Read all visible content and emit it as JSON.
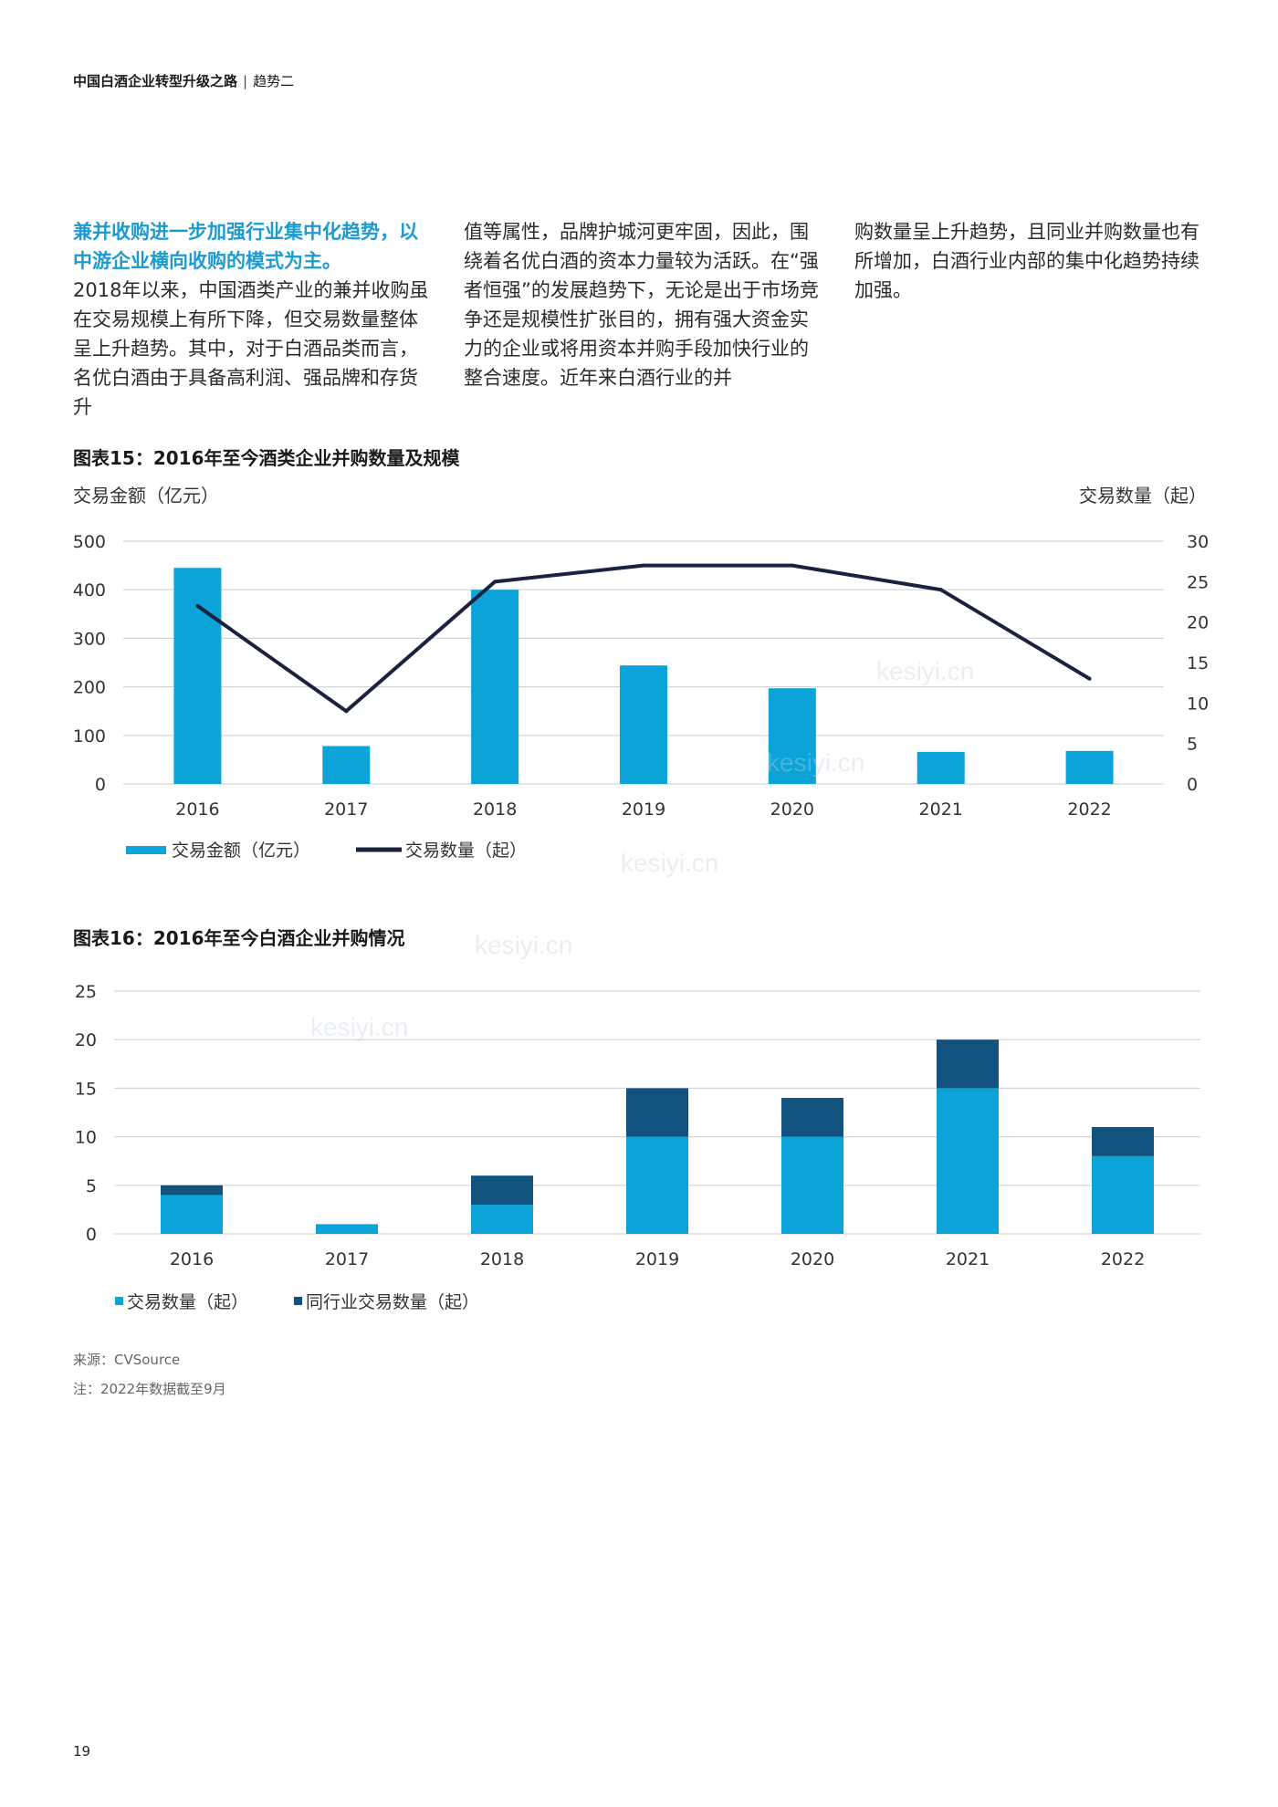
{
  "header": {
    "title": "中国白酒企业转型升级之路",
    "section": "趋势二"
  },
  "body_text": {
    "col1_lead": "兼并收购进一步加强行业集中化趋势，以中游企业横向收购的模式为主。",
    "col1_text": "2018年以来，中国酒类产业的兼并收购虽在交易规模上有所下降，但交易数量整体呈上升趋势。其中，对于白酒品类而言，名优白酒由于具备高利润、强品牌和存货升",
    "col2_text": "值等属性，品牌护城河更牢固，因此，围绕着名优白酒的资本力量较为活跃。在“强者恒强”的发展趋势下，无论是出于市场竞争还是规模性扩张目的，拥有强大资金实力的企业或将用资本并购手段加快行业的整合速度。近年来白酒行业的并",
    "col3_text": "购数量呈上升趋势，且同业并购数量也有所增加，白酒行业内部的集中化趋势持续加强。"
  },
  "chart_data": [
    {
      "type": "bar",
      "title": "图表15：2016年至今酒类企业并购数量及规模",
      "ylabel": "交易金额（亿元）",
      "y2label": "交易数量（起）",
      "categories": [
        "2016",
        "2017",
        "2018",
        "2019",
        "2020",
        "2021",
        "2022"
      ],
      "ylim": [
        0,
        500
      ],
      "y2lim": [
        0,
        30
      ],
      "yticks": [
        "0",
        "100",
        "200",
        "300",
        "400",
        "500"
      ],
      "y2ticks": [
        "0",
        "5",
        "10",
        "15",
        "20",
        "25",
        "30"
      ],
      "series": [
        {
          "name": "交易金额（亿元）",
          "type": "bar",
          "axis": "left",
          "color": "#0ba3d8",
          "values": [
            445,
            78,
            400,
            244,
            197,
            66,
            68
          ]
        },
        {
          "name": "交易数量（起）",
          "type": "line",
          "axis": "right",
          "color": "#1b2140",
          "values": [
            22,
            9,
            25,
            27,
            27,
            24,
            13
          ]
        }
      ],
      "grid": true,
      "legend": "bottom-left"
    },
    {
      "type": "bar",
      "stacked": true,
      "title": "图表16：2016年至今白酒企业并购情况",
      "categories": [
        "2016",
        "2017",
        "2018",
        "2019",
        "2020",
        "2021",
        "2022"
      ],
      "ylim": [
        0,
        25
      ],
      "yticks": [
        "0",
        "5",
        "10",
        "15",
        "20",
        "25"
      ],
      "series": [
        {
          "name": "交易数量（起）",
          "color": "#0ba3d8",
          "values": [
            4,
            1,
            3,
            10,
            10,
            15,
            8
          ]
        },
        {
          "name": "同行业交易数量（起）",
          "color": "#13527f",
          "values": [
            1,
            0,
            3,
            5,
            4,
            5,
            3
          ]
        }
      ],
      "grid": true,
      "legend": "bottom-left"
    }
  ],
  "notes": {
    "source": "来源：CVSource",
    "note": "注：2022年数据截至9月"
  },
  "watermark": "kesiyi.cn",
  "page_number": "19"
}
